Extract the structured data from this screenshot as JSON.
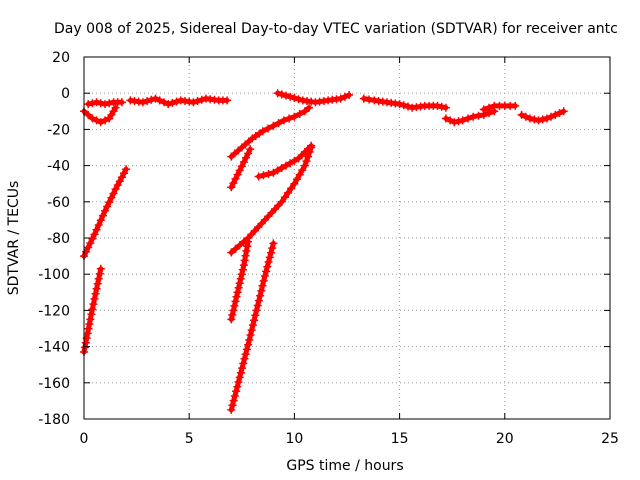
{
  "chart_data": {
    "type": "line",
    "title": "Day 008 of 2025, Sidereal Day-to-day VTEC variation (SDTVAR) for receiver antc",
    "xlabel": "GPS time / hours",
    "ylabel": "SDTVAR / TECUs",
    "xlim": [
      0,
      25
    ],
    "ylim": [
      -180,
      20
    ],
    "x_ticks": [
      0,
      5,
      10,
      15,
      20,
      25
    ],
    "y_ticks": [
      20,
      0,
      -20,
      -40,
      -60,
      -80,
      -100,
      -120,
      -140,
      -160,
      -180
    ],
    "x_tick_labels": [
      "0",
      "5",
      "10",
      "15",
      "20",
      "25"
    ],
    "y_tick_labels": [
      "20",
      "0",
      "-20",
      "-40",
      "-60",
      "-80",
      "-100",
      "-120",
      "-140",
      "-160",
      "-180"
    ],
    "grid": true,
    "legend": "none",
    "marker": "plus",
    "color": "#ff0000",
    "series": [
      {
        "x": [
          0.0,
          0.4,
          0.8,
          1.2,
          1.5
        ],
        "y": [
          -10,
          -14,
          -16,
          -14,
          -8
        ]
      },
      {
        "x": [
          0.2,
          0.6,
          1.0,
          1.4,
          1.8
        ],
        "y": [
          -6,
          -5,
          -6,
          -5,
          -5
        ]
      },
      {
        "x": [
          2.2,
          2.8,
          3.4,
          4.0,
          4.6,
          5.2,
          5.8,
          6.4,
          6.8
        ],
        "y": [
          -4,
          -5,
          -3,
          -6,
          -4,
          -5,
          -3,
          -4,
          -4
        ]
      },
      {
        "x": [
          0.0,
          0.5,
          1.0,
          1.5,
          2.0
        ],
        "y": [
          -90,
          -78,
          -65,
          -53,
          -42
        ]
      },
      {
        "x": [
          0.0,
          0.3,
          0.6,
          0.8
        ],
        "y": [
          -143,
          -125,
          -108,
          -97
        ]
      },
      {
        "x": [
          7.0,
          7.3,
          7.6,
          7.9
        ],
        "y": [
          -52,
          -45,
          -38,
          -31
        ]
      },
      {
        "x": [
          7.0,
          7.5,
          8.0,
          8.5,
          9.0,
          9.5,
          10.0,
          10.5,
          10.7
        ],
        "y": [
          -35,
          -30,
          -25,
          -21,
          -18,
          -15,
          -13,
          -10,
          -8
        ]
      },
      {
        "x": [
          8.3,
          9.0,
          9.6,
          10.2,
          10.8
        ],
        "y": [
          -46,
          -44,
          -40,
          -36,
          -29
        ]
      },
      {
        "x": [
          7.0,
          7.8,
          8.6,
          9.4,
          10.0,
          10.5,
          10.8
        ],
        "y": [
          -88,
          -80,
          -70,
          -60,
          -50,
          -40,
          -30
        ]
      },
      {
        "x": [
          7.0,
          7.3,
          7.6,
          7.8
        ],
        "y": [
          -125,
          -110,
          -95,
          -82
        ]
      },
      {
        "x": [
          7.0,
          7.4,
          7.8,
          8.2,
          8.6,
          9.0
        ],
        "y": [
          -175,
          -157,
          -139,
          -120,
          -101,
          -83
        ]
      },
      {
        "x": [
          9.2,
          9.8,
          10.4,
          11.0,
          11.6,
          12.2,
          12.6
        ],
        "y": [
          0,
          -2,
          -4,
          -5,
          -4,
          -3,
          -1
        ]
      },
      {
        "x": [
          13.3,
          13.8,
          14.4,
          15.0,
          15.6,
          16.2,
          16.8,
          17.2
        ],
        "y": [
          -3,
          -4,
          -5,
          -6,
          -8,
          -7,
          -7,
          -8
        ]
      },
      {
        "x": [
          17.2,
          17.6,
          18.0,
          18.5,
          19.0,
          19.5
        ],
        "y": [
          -14,
          -16,
          -15,
          -13,
          -12,
          -10
        ]
      },
      {
        "x": [
          19.0,
          19.5,
          20.0,
          20.5
        ],
        "y": [
          -9,
          -7,
          -7,
          -7
        ]
      },
      {
        "x": [
          20.8,
          21.2,
          21.6,
          22.0,
          22.4,
          22.8
        ],
        "y": [
          -12,
          -14,
          -15,
          -14,
          -12,
          -10
        ]
      }
    ]
  }
}
